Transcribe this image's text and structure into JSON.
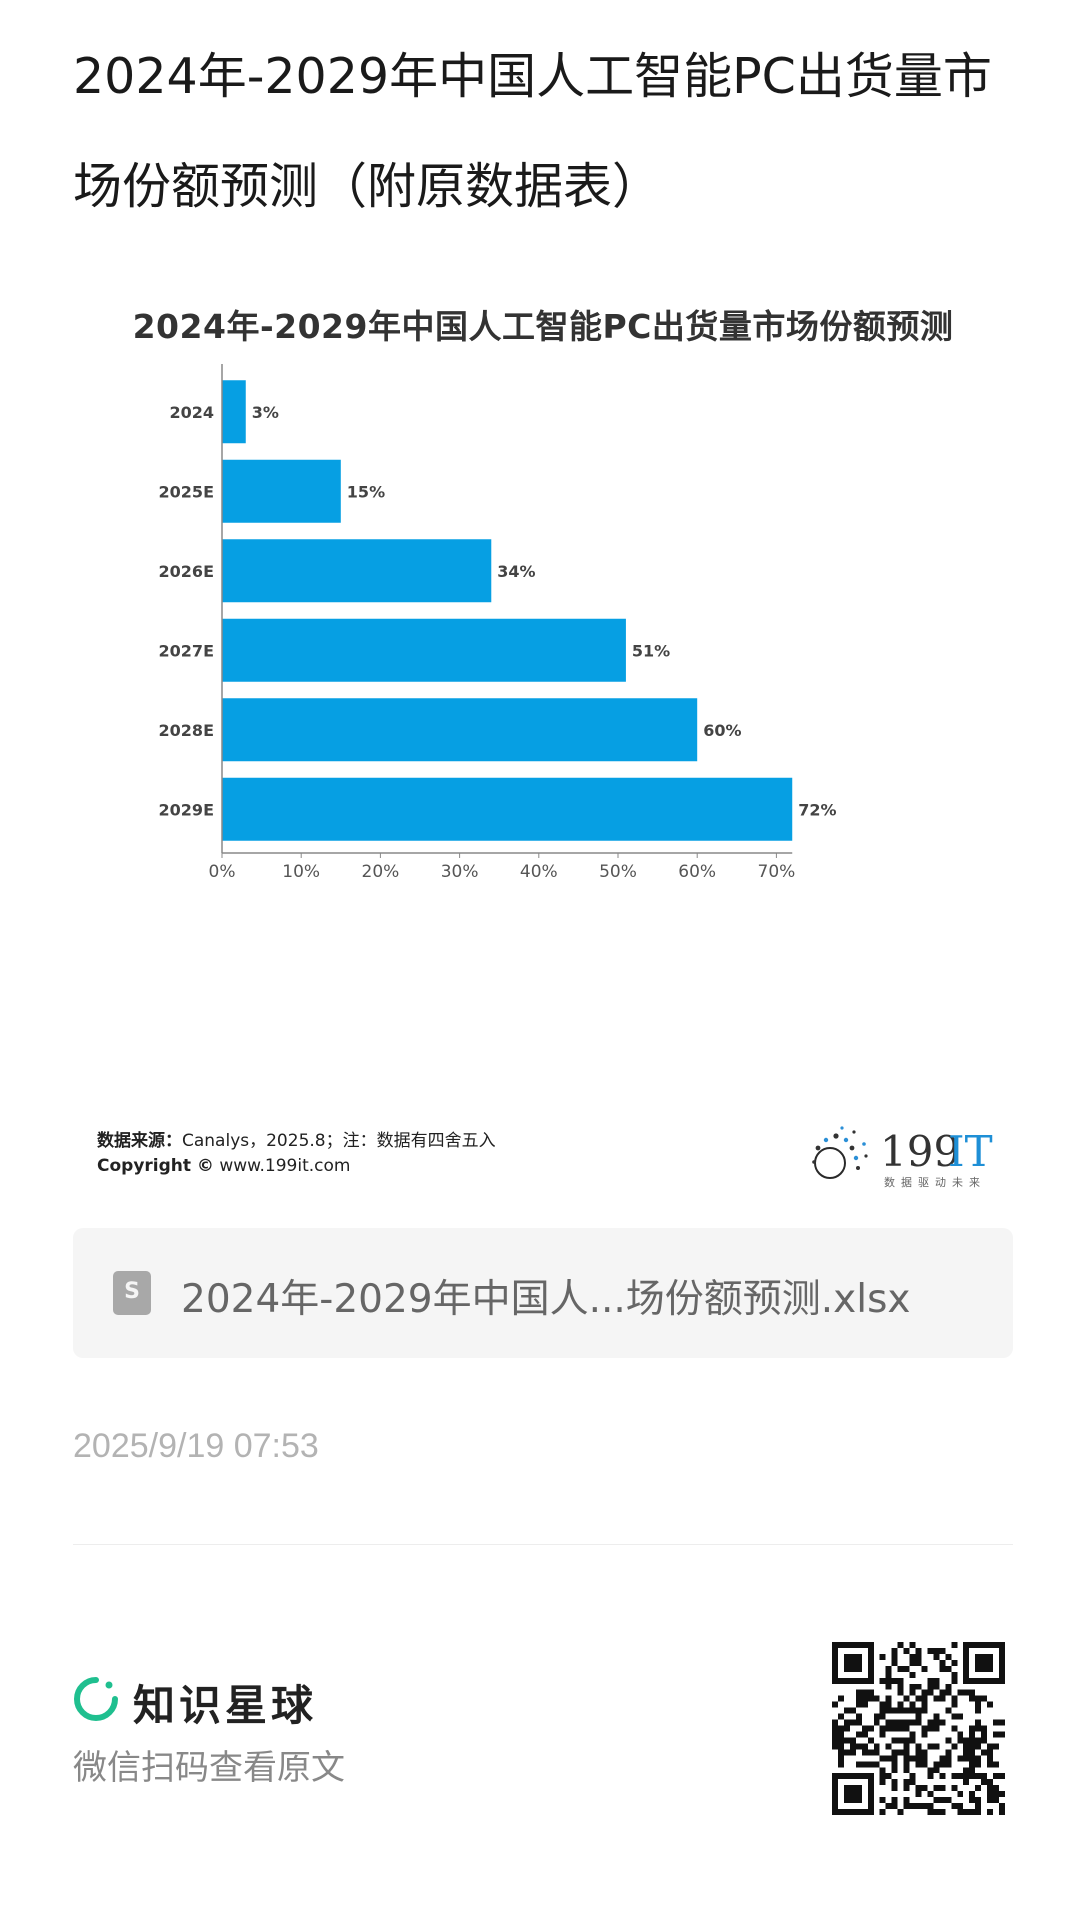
{
  "page": {
    "title": "2024年-2029年中国人工智能PC出货量市场份额预测（附原数据表）"
  },
  "chart_data": {
    "type": "bar",
    "orientation": "horizontal",
    "title": "2024年-2029年中国人工智能PC出货量市场份额预测",
    "categories": [
      "2024",
      "2025E",
      "2026E",
      "2027E",
      "2028E",
      "2029E"
    ],
    "values": [
      3,
      15,
      34,
      51,
      60,
      72
    ],
    "value_labels": [
      "3%",
      "15%",
      "34%",
      "51%",
      "60%",
      "72%"
    ],
    "x_ticks": [
      "0%",
      "10%",
      "20%",
      "30%",
      "40%",
      "50%",
      "60%",
      "70%"
    ],
    "xlim": [
      0,
      72
    ],
    "grid": false,
    "bar_color": "#069fe3"
  },
  "source": {
    "label": "数据来源：",
    "text": "Canalys，2025.8；注：数据有四舍五入",
    "copyright_label": "Copyright ©",
    "copyright_site": "www.199it.com"
  },
  "brand": {
    "name": "199IT",
    "slogan": "数据驱动未来"
  },
  "attachment": {
    "icon": "spreadsheet-file-icon",
    "icon_letter": "S",
    "file_name": "2024年-2029年中国人...场份额预测.xlsx"
  },
  "timestamp": "2025/9/19 07:53",
  "footer": {
    "app_name": "知识星球",
    "app_icon": "zsxq-logo-icon",
    "scan_hint": "微信扫码查看原文",
    "accent_color": "#1fbf8f"
  }
}
